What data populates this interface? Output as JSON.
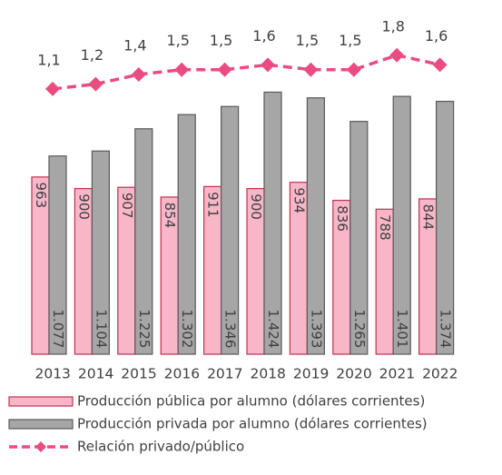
{
  "chart_data": {
    "type": "bar",
    "categories": [
      "2013",
      "2014",
      "2015",
      "2016",
      "2017",
      "2018",
      "2019",
      "2020",
      "2021",
      "2022"
    ],
    "ylim": [
      0,
      1900
    ],
    "y2lim": [
      -4.4,
      2.85
    ],
    "series": [
      {
        "name": "Producción pública por alumno (dólares corrientes)",
        "type": "bar",
        "color": "#f7b7c9",
        "values": [
          963,
          900,
          907,
          854,
          911,
          900,
          934,
          836,
          788,
          844
        ]
      },
      {
        "name": "Producción privada por alumno (dólares corrientes)",
        "type": "bar",
        "color": "#a6a6a6",
        "values": [
          1077,
          1104,
          1225,
          1302,
          1346,
          1424,
          1393,
          1265,
          1401,
          1374
        ],
        "value_labels": [
          "1.077",
          "1.104",
          "1.225",
          "1.302",
          "1.346",
          "1.424",
          "1.393",
          "1.265",
          "1.401",
          "1.374"
        ]
      },
      {
        "name": "Relación privado/público",
        "type": "line",
        "axis": "y2",
        "color": "#ea4c80",
        "values": [
          1.1,
          1.2,
          1.4,
          1.5,
          1.5,
          1.6,
          1.5,
          1.5,
          1.8,
          1.6
        ],
        "value_labels": [
          "1,1",
          "1,2",
          "1,4",
          "1,5",
          "1,5",
          "1,6",
          "1,5",
          "1,5",
          "1,8",
          "1,6"
        ]
      }
    ]
  }
}
